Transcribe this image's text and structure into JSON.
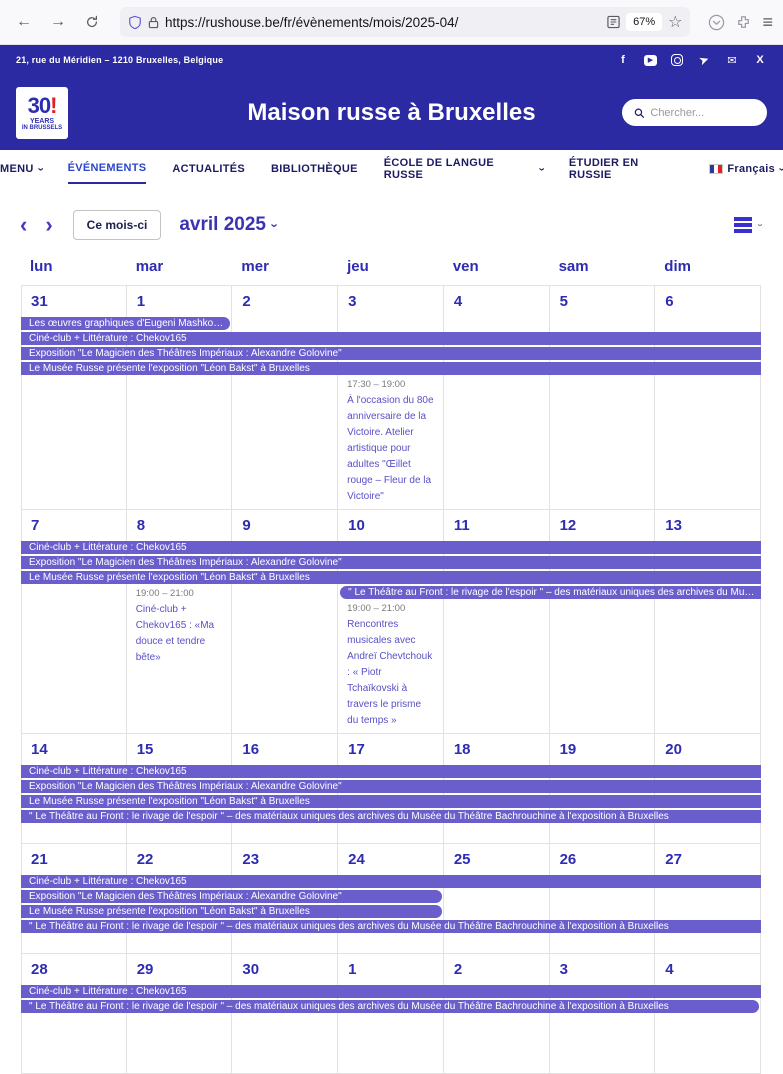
{
  "browser": {
    "url": "https://rushouse.be/fr/évènements/mois/2025-04/",
    "zoom_level": "67%"
  },
  "topbar": {
    "address": "21, rue du Méridien – 1210 Bruxelles, Belgique",
    "social": [
      {
        "name": "facebook",
        "glyph": "f",
        "cls": ""
      },
      {
        "name": "youtube",
        "glyph": "▶",
        "cls": "yt"
      },
      {
        "name": "instagram",
        "glyph": "",
        "cls": "ig"
      },
      {
        "name": "telegram",
        "glyph": "➤",
        "cls": "tg"
      },
      {
        "name": "email",
        "glyph": "✉",
        "cls": ""
      },
      {
        "name": "x-twitter",
        "glyph": "X",
        "cls": ""
      }
    ]
  },
  "header": {
    "title": "Maison russe à Bruxelles",
    "logo": {
      "line1": "30",
      "line2": "YEARS",
      "line3": "IN BRUSSELS"
    },
    "search_placeholder": "Chercher..."
  },
  "nav": {
    "items": [
      {
        "label": "MENU",
        "chevron": true,
        "active": false
      },
      {
        "label": "ÉVÉNEMENTS",
        "chevron": false,
        "active": true
      },
      {
        "label": "ACTUALITÉS",
        "chevron": false,
        "active": false
      },
      {
        "label": "BIBLIOTHÈQUE",
        "chevron": false,
        "active": false
      },
      {
        "label": "ÉCOLE DE LANGUE RUSSE",
        "chevron": true,
        "active": false
      },
      {
        "label": "ÉTUDIER EN RUSSIE",
        "chevron": false,
        "active": false
      }
    ],
    "language": {
      "label": "Français",
      "chevron": true
    }
  },
  "toolbar": {
    "prev_label": "‹",
    "next_label": "›",
    "today_label": "Ce mois-ci",
    "month_title": "avril 2025"
  },
  "calendar": {
    "day_headers": [
      "lun",
      "mar",
      "mer",
      "jeu",
      "ven",
      "sam",
      "dim"
    ],
    "weeks": [
      {
        "dates": [
          "31",
          "1",
          "2",
          "3",
          "4",
          "5",
          "6"
        ],
        "bars": [
          {
            "label": "Les œuvres graphiques d'Eugeni Mashkowski ...",
            "col": 1,
            "span": 2,
            "slot": 1,
            "round_left": false,
            "round_right": true
          },
          {
            "label": "Ciné-club + Littérature : Chekov165",
            "col": 1,
            "span": 7,
            "slot": 2,
            "round_left": false,
            "round_right": false
          },
          {
            "label": "Exposition \"Le Magicien des Théâtres Impériaux : Alexandre Golovine\"",
            "col": 1,
            "span": 7,
            "slot": 3,
            "round_left": false,
            "round_right": false
          },
          {
            "label": "Le Musée Russe présente l'exposition \"Léon Bakst\" à Bruxelles",
            "col": 1,
            "span": 7,
            "slot": 4,
            "round_left": false,
            "round_right": false
          }
        ],
        "details": [
          {
            "col": 4,
            "slot": 5,
            "rowspan": 1,
            "time": "17:30 – 19:00",
            "title": "À l'occasion du 80e anniversaire de la Victoire. Atelier artistique pour adultes \"Œillet rouge – Fleur de la Victoire\""
          }
        ]
      },
      {
        "dates": [
          "7",
          "8",
          "9",
          "10",
          "11",
          "12",
          "13"
        ],
        "bars": [
          {
            "label": "Ciné-club + Littérature : Chekov165",
            "col": 1,
            "span": 7,
            "slot": 1,
            "round_left": false,
            "round_right": false
          },
          {
            "label": "Exposition \"Le Magicien des Théâtres Impériaux : Alexandre Golovine\"",
            "col": 1,
            "span": 7,
            "slot": 2,
            "round_left": false,
            "round_right": false
          },
          {
            "label": "Le Musée Russe présente l'exposition \"Léon Bakst\" à Bruxelles",
            "col": 1,
            "span": 7,
            "slot": 3,
            "round_left": false,
            "round_right": false
          },
          {
            "label": "\" Le Théâtre au Front : le rivage de l'espoir \" – des matériaux uniques des archives du Musée du Théâ...",
            "col": 4,
            "span": 4,
            "slot": 4,
            "round_left": true,
            "round_right": false
          }
        ],
        "details": [
          {
            "col": 2,
            "slot": 4,
            "rowspan": 2,
            "time": "19:00 – 21:00",
            "title": "Ciné-club + Chekov165 : «Ma douce et tendre bête»"
          },
          {
            "col": 4,
            "slot": 5,
            "rowspan": 1,
            "time": "19:00 – 21:00",
            "title": "Rencontres musicales avec Andreï Chevtchouk : « Piotr Tchaïkovski à travers le prisme du temps »"
          }
        ]
      },
      {
        "dates": [
          "14",
          "15",
          "16",
          "17",
          "18",
          "19",
          "20"
        ],
        "bars": [
          {
            "label": "Ciné-club + Littérature : Chekov165",
            "col": 1,
            "span": 7,
            "slot": 1,
            "round_left": false,
            "round_right": false
          },
          {
            "label": "Exposition \"Le Magicien des Théâtres Impériaux : Alexandre Golovine\"",
            "col": 1,
            "span": 7,
            "slot": 2,
            "round_left": false,
            "round_right": false
          },
          {
            "label": "Le Musée Russe présente l'exposition \"Léon Bakst\" à Bruxelles",
            "col": 1,
            "span": 7,
            "slot": 3,
            "round_left": false,
            "round_right": false
          },
          {
            "label": "\" Le Théâtre au Front : le rivage de l'espoir \" – des matériaux uniques des archives du Musée du Théâtre Bachrouchine à l'exposition à Bruxelles",
            "col": 1,
            "span": 7,
            "slot": 4,
            "round_left": false,
            "round_right": false
          }
        ],
        "details": []
      },
      {
        "dates": [
          "21",
          "22",
          "23",
          "24",
          "25",
          "26",
          "27"
        ],
        "bars": [
          {
            "label": "Ciné-club + Littérature : Chekov165",
            "col": 1,
            "span": 7,
            "slot": 1,
            "round_left": false,
            "round_right": false
          },
          {
            "label": "Exposition \"Le Magicien des Théâtres Impériaux : Alexandre Golovine\"",
            "col": 1,
            "span": 4,
            "slot": 2,
            "round_left": false,
            "round_right": true
          },
          {
            "label": "Le Musée Russe présente l'exposition \"Léon Bakst\" à Bruxelles",
            "col": 1,
            "span": 4,
            "slot": 3,
            "round_left": false,
            "round_right": true
          },
          {
            "label": "\" Le Théâtre au Front : le rivage de l'espoir \" – des matériaux uniques des archives du Musée du Théâtre Bachrouchine à l'exposition à Bruxelles",
            "col": 1,
            "span": 7,
            "slot": 4,
            "round_left": false,
            "round_right": false
          }
        ],
        "details": []
      },
      {
        "dates": [
          "28",
          "29",
          "30",
          "1",
          "2",
          "3",
          "4"
        ],
        "bars": [
          {
            "label": "Ciné-club + Littérature : Chekov165",
            "col": 1,
            "span": 7,
            "slot": 1,
            "round_left": false,
            "round_right": false
          },
          {
            "label": "\" Le Théâtre au Front : le rivage de l'espoir \" – des matériaux uniques des archives du Musée du Théâtre Bachrouchine à l'exposition à Bruxelles",
            "col": 1,
            "span": 7,
            "slot": 2,
            "round_left": false,
            "round_right": true
          }
        ],
        "details": []
      }
    ]
  },
  "colors": {
    "brand_blue": "#2b2aa2",
    "event_purple": "#6a5ecd",
    "text_blue": "#2e2cb2",
    "detail_purple": "#5950c6",
    "nav_active": "#2b46c9"
  }
}
